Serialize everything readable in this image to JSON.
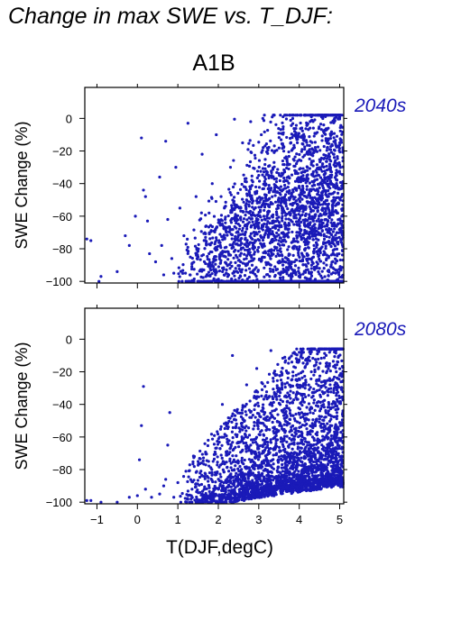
{
  "heading": "Change in max SWE vs. T_DJF:",
  "scenario": "A1B",
  "chart_data": [
    {
      "type": "scatter",
      "panel_label": "2040s",
      "ylabel": "SWE Change (%)",
      "xlabel": "",
      "xlim": [
        -1.3,
        5.1
      ],
      "ylim": [
        -101,
        19
      ],
      "yticks": [
        0,
        -20,
        -40,
        -60,
        -80,
        -100
      ],
      "ytick_labels": [
        "0",
        "−20",
        "−40",
        "−60",
        "−80",
        "−100"
      ],
      "xticks": [
        -1,
        0,
        1,
        2,
        3,
        4,
        5
      ],
      "xtick_labels_shown": false,
      "grid": false,
      "legend": "none",
      "marker_color": "#1a1ab8",
      "series": [
        {
          "points": [
            [
              -1.25,
              -74
            ],
            [
              -1.15,
              -75
            ],
            [
              -0.95,
              -100
            ],
            [
              -0.9,
              -97
            ],
            [
              -0.5,
              -94
            ],
            [
              -0.3,
              -72
            ],
            [
              -0.2,
              -78
            ],
            [
              -0.05,
              -60
            ],
            [
              0.1,
              -12
            ],
            [
              0.15,
              -44
            ],
            [
              0.2,
              -48
            ],
            [
              0.25,
              -63
            ],
            [
              0.3,
              -83
            ],
            [
              0.45,
              -88
            ],
            [
              0.55,
              -36
            ],
            [
              0.6,
              -78
            ],
            [
              0.65,
              -96
            ],
            [
              0.7,
              -14
            ],
            [
              0.75,
              -62
            ],
            [
              0.85,
              -86
            ],
            [
              0.9,
              -95
            ],
            [
              0.95,
              -30
            ],
            [
              1.05,
              -55
            ],
            [
              1.15,
              -72
            ],
            [
              1.25,
              -3
            ],
            [
              1.3,
              -96
            ],
            [
              1.45,
              -48
            ],
            [
              1.5,
              -85
            ],
            [
              1.6,
              -22
            ],
            [
              1.7,
              -66
            ],
            [
              1.8,
              -92
            ],
            [
              1.85,
              -40
            ],
            [
              1.95,
              -10
            ],
            [
              2.05,
              -78
            ],
            [
              2.15,
              -55
            ],
            [
              2.2,
              -95
            ],
            [
              2.3,
              -30
            ],
            [
              2.4,
              -0.5
            ],
            [
              2.45,
              -70
            ],
            [
              2.55,
              -88
            ],
            [
              2.6,
              -15
            ],
            [
              2.7,
              -50
            ],
            [
              2.8,
              -2
            ],
            [
              2.9,
              -82
            ],
            [
              3.0,
              -35
            ],
            [
              3.1,
              0
            ],
            [
              3.2,
              -60
            ],
            [
              3.3,
              -90
            ],
            [
              3.4,
              -20
            ],
            [
              3.5,
              -75
            ],
            [
              3.6,
              1
            ],
            [
              3.7,
              -45
            ],
            [
              3.8,
              -98
            ],
            [
              3.9,
              -10
            ],
            [
              4.0,
              -65
            ],
            [
              4.05,
              2
            ],
            [
              4.1,
              -85
            ],
            [
              4.2,
              -30
            ],
            [
              4.3,
              1
            ],
            [
              4.4,
              -55
            ],
            [
              4.5,
              -92
            ],
            [
              4.6,
              -8
            ],
            [
              4.7,
              -70
            ],
            [
              4.8,
              -40
            ],
            [
              4.9,
              -95
            ],
            [
              5.0,
              -15
            ],
            [
              5.05,
              -60
            ]
          ],
          "trend": [
            [
              1.2,
              -94
            ],
            [
              2.0,
              -84
            ],
            [
              3.0,
              -68
            ],
            [
              4.0,
              -58
            ],
            [
              5.0,
              -52
            ]
          ]
        }
      ]
    },
    {
      "type": "scatter",
      "panel_label": "2080s",
      "ylabel": "SWE Change (%)",
      "xlabel": "T(DJF,degC)",
      "xlim": [
        -1.3,
        5.1
      ],
      "ylim": [
        -101,
        19
      ],
      "yticks": [
        0,
        -20,
        -40,
        -60,
        -80,
        -100
      ],
      "ytick_labels": [
        "0",
        "−20",
        "−40",
        "−60",
        "−80",
        "−100"
      ],
      "xticks": [
        -1,
        0,
        1,
        2,
        3,
        4,
        5
      ],
      "xtick_labels": [
        "−1",
        "0",
        "1",
        "2",
        "3",
        "4",
        "5"
      ],
      "grid": false,
      "legend": "none",
      "marker_color": "#1a1ab8",
      "series": [
        {
          "points": [
            [
              -1.25,
              -99
            ],
            [
              -1.15,
              -99
            ],
            [
              -0.9,
              -100
            ],
            [
              -0.5,
              -100
            ],
            [
              -0.2,
              -97
            ],
            [
              0.0,
              -96
            ],
            [
              0.05,
              -74
            ],
            [
              0.1,
              -53
            ],
            [
              0.15,
              -29
            ],
            [
              0.2,
              -92
            ],
            [
              0.35,
              -97
            ],
            [
              0.55,
              -95
            ],
            [
              0.65,
              -90
            ],
            [
              0.7,
              -86
            ],
            [
              0.75,
              -65
            ],
            [
              0.8,
              -45
            ],
            [
              0.9,
              -97
            ],
            [
              1.0,
              -88
            ],
            [
              1.2,
              -81
            ],
            [
              1.35,
              -92
            ],
            [
              1.5,
              -75
            ],
            [
              1.6,
              -98
            ],
            [
              1.75,
              -62
            ],
            [
              1.85,
              -83
            ],
            [
              2.0,
              -92
            ],
            [
              2.1,
              -40
            ],
            [
              2.2,
              -70
            ],
            [
              2.35,
              -10
            ],
            [
              2.45,
              -52
            ],
            [
              2.6,
              -85
            ],
            [
              2.7,
              -28
            ],
            [
              2.8,
              -65
            ],
            [
              2.95,
              -18
            ],
            [
              3.05,
              -78
            ],
            [
              3.15,
              -45
            ],
            [
              3.3,
              -7
            ],
            [
              3.4,
              -60
            ],
            [
              3.55,
              -25
            ],
            [
              3.65,
              -84
            ],
            [
              3.75,
              -12
            ],
            [
              3.9,
              -50
            ],
            [
              4.0,
              -8
            ],
            [
              4.15,
              -70
            ],
            [
              4.3,
              -20
            ],
            [
              4.45,
              -9
            ],
            [
              4.6,
              -40
            ],
            [
              4.75,
              -8
            ],
            [
              4.9,
              -60
            ],
            [
              5.05,
              -30
            ]
          ],
          "trend": [
            [
              1.2,
              -99
            ],
            [
              2.0,
              -96
            ],
            [
              3.0,
              -92
            ],
            [
              4.0,
              -88
            ],
            [
              5.0,
              -85
            ]
          ]
        }
      ]
    }
  ]
}
